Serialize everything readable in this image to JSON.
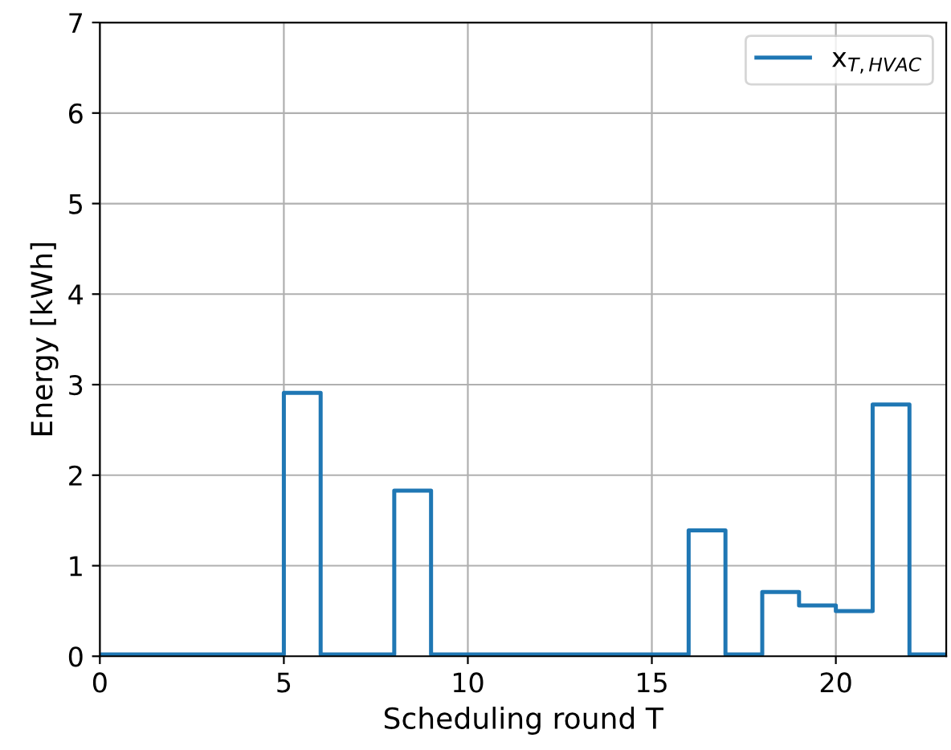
{
  "chart_data": {
    "type": "step",
    "xlabel": "Scheduling round T",
    "ylabel": "Energy [kWh]",
    "x": [
      0,
      1,
      2,
      3,
      4,
      5,
      6,
      7,
      8,
      9,
      10,
      11,
      12,
      13,
      14,
      15,
      16,
      17,
      18,
      19,
      20,
      21,
      22,
      23
    ],
    "series": [
      {
        "name": "x$_{T,HVAC}$",
        "color": "#1f77b4",
        "values": [
          0.02,
          0.02,
          0.02,
          0.02,
          0.02,
          2.91,
          0.02,
          0.02,
          1.83,
          0.02,
          0.02,
          0.02,
          0.02,
          0.02,
          0.02,
          0.02,
          1.39,
          0.02,
          0.71,
          0.56,
          0.5,
          2.78,
          0.02,
          0.02
        ]
      }
    ],
    "xlim": [
      0,
      23
    ],
    "ylim": [
      0,
      7
    ],
    "xticks": [
      0,
      5,
      10,
      15,
      20
    ],
    "yticks": [
      0,
      1,
      2,
      3,
      4,
      5,
      6,
      7
    ],
    "grid": true,
    "legend": "top right",
    "line_style": "solid",
    "marker": "none"
  }
}
